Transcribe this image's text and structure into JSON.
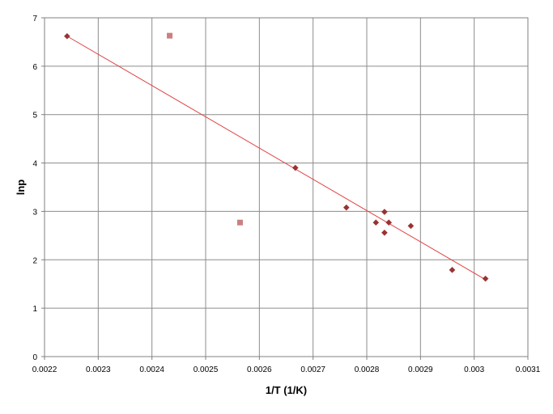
{
  "chart_data": {
    "type": "scatter",
    "title": "",
    "xlabel": "1/T (1/K)",
    "ylabel": "lnp",
    "xlim": [
      0.0022,
      0.0031
    ],
    "ylim": [
      0,
      7
    ],
    "x_ticks": [
      "0.0022",
      "0.0023",
      "0.0024",
      "0.0025",
      "0.0026",
      "0.0027",
      "0.0028",
      "0.0029",
      "0.003",
      "0.0031"
    ],
    "y_ticks": [
      "0",
      "1",
      "2",
      "3",
      "4",
      "5",
      "6",
      "7"
    ],
    "grid": true,
    "legend": "none",
    "series": [
      {
        "marker": "diamond",
        "color": "#993333",
        "points": [
          {
            "x": 0.002242,
            "y": 6.62
          },
          {
            "x": 0.002667,
            "y": 3.9
          },
          {
            "x": 0.002762,
            "y": 3.08
          },
          {
            "x": 0.002817,
            "y": 2.77
          },
          {
            "x": 0.002833,
            "y": 2.99
          },
          {
            "x": 0.002833,
            "y": 2.56
          },
          {
            "x": 0.002841,
            "y": 2.77
          },
          {
            "x": 0.002882,
            "y": 2.7
          },
          {
            "x": 0.002959,
            "y": 1.79
          },
          {
            "x": 0.003021,
            "y": 1.61
          }
        ]
      },
      {
        "marker": "square",
        "color": "#cc7f7f",
        "points": [
          {
            "x": 0.002433,
            "y": 6.63
          },
          {
            "x": 0.002564,
            "y": 2.77
          }
        ]
      }
    ],
    "trendline": {
      "type": "linear",
      "color": "#e04040",
      "from": {
        "x": 0.002242,
        "y": 6.62
      },
      "to": {
        "x": 0.003021,
        "y": 1.59
      }
    }
  }
}
